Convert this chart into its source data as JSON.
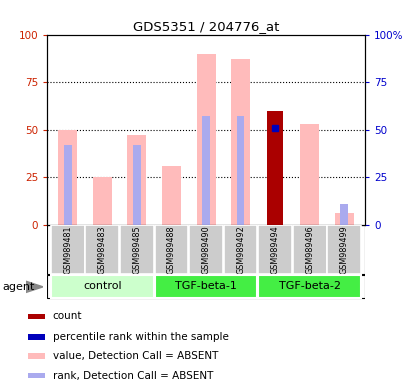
{
  "title": "GDS5351 / 204776_at",
  "samples": [
    "GSM989481",
    "GSM989483",
    "GSM989485",
    "GSM989488",
    "GSM989490",
    "GSM989492",
    "GSM989494",
    "GSM989496",
    "GSM989499"
  ],
  "groups": [
    {
      "name": "control",
      "indices": [
        0,
        1,
        2
      ],
      "color": "#ccffcc"
    },
    {
      "name": "TGF-beta-1",
      "indices": [
        3,
        4,
        5
      ],
      "color": "#44ee44"
    },
    {
      "name": "TGF-beta-2",
      "indices": [
        6,
        7,
        8
      ],
      "color": "#44ee44"
    }
  ],
  "value_absent": [
    50,
    25,
    47,
    31,
    90,
    87,
    null,
    53,
    6
  ],
  "rank_absent": [
    42,
    null,
    42,
    null,
    57,
    57,
    null,
    null,
    11
  ],
  "count": [
    null,
    null,
    null,
    null,
    null,
    null,
    60,
    null,
    null
  ],
  "percentile_rank": [
    null,
    null,
    null,
    null,
    null,
    null,
    51,
    null,
    null
  ],
  "ylim": [
    0,
    100
  ],
  "yticks": [
    0,
    25,
    50,
    75,
    100
  ],
  "ytick_labels_left": [
    "0",
    "25",
    "50",
    "75",
    "100"
  ],
  "ytick_labels_right": [
    "0",
    "25",
    "50",
    "75",
    "100%"
  ],
  "color_value_absent": "#ffbbbb",
  "color_rank_absent": "#aaaaee",
  "color_count": "#aa0000",
  "color_percentile": "#0000bb",
  "agent_label": "agent",
  "legend_items": [
    {
      "color": "#aa0000",
      "label": "count",
      "shape": "square"
    },
    {
      "color": "#0000bb",
      "label": "percentile rank within the sample",
      "shape": "square"
    },
    {
      "color": "#ffbbbb",
      "label": "value, Detection Call = ABSENT",
      "shape": "square"
    },
    {
      "color": "#aaaaee",
      "label": "rank, Detection Call = ABSENT",
      "shape": "square"
    }
  ]
}
